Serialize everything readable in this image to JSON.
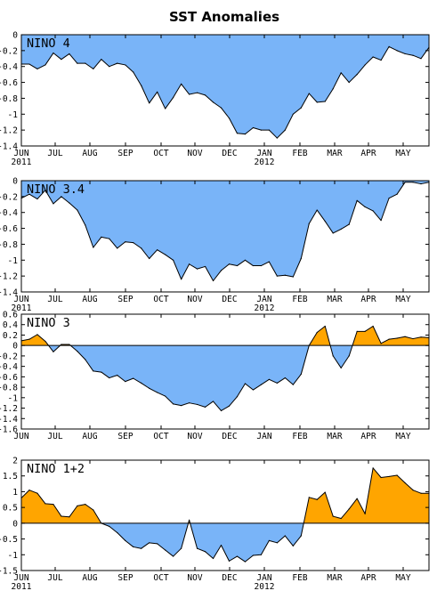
{
  "title": "SST Anomalies",
  "colors": {
    "negative": "#79b4f8",
    "positive": "#ffa500",
    "line": "#000000"
  },
  "chart_data": [
    {
      "type": "area",
      "name": "NINO 4",
      "ylim": [
        -1.4,
        0.0
      ],
      "yticks": [
        "0",
        "-0.2",
        "-0.4",
        "-0.6",
        "-0.8",
        "-1",
        "-1.2",
        "-1.4"
      ],
      "ytick_values": [
        0,
        -0.2,
        -0.4,
        -0.6,
        -0.8,
        -1,
        -1.2,
        -1.4
      ],
      "xticks": [
        "JUN",
        "JUL",
        "AUG",
        "SEP",
        "OCT",
        "NOV",
        "DEC",
        "JAN",
        "FEB",
        "MAR",
        "APR",
        "MAY"
      ],
      "year_labels": [
        "2011",
        "2012"
      ],
      "x_weeks": [
        0,
        1,
        2,
        3,
        4,
        5,
        6,
        7,
        8,
        9,
        10,
        11,
        12,
        13,
        14,
        15,
        16,
        17,
        18,
        19,
        20,
        21,
        22,
        23,
        24,
        25,
        26,
        27,
        28,
        29,
        30,
        31,
        32,
        33,
        34,
        35,
        36,
        37,
        38,
        39,
        40,
        41,
        42,
        43,
        44,
        45,
        46,
        47,
        48,
        49,
        50,
        51
      ],
      "values": [
        -0.37,
        -0.37,
        -0.43,
        -0.38,
        -0.23,
        -0.31,
        -0.24,
        -0.36,
        -0.36,
        -0.43,
        -0.31,
        -0.4,
        -0.36,
        -0.38,
        -0.47,
        -0.64,
        -0.86,
        -0.72,
        -0.93,
        -0.79,
        -0.62,
        -0.75,
        -0.73,
        -0.76,
        -0.85,
        -0.92,
        -1.05,
        -1.24,
        -1.25,
        -1.17,
        -1.2,
        -1.2,
        -1.3,
        -1.2,
        -1.0,
        -0.92,
        -0.74,
        -0.85,
        -0.84,
        -0.68,
        -0.48,
        -0.6,
        -0.5,
        -0.38,
        -0.28,
        -0.32,
        -0.15,
        -0.2,
        -0.24,
        -0.26,
        -0.3,
        -0.16
      ]
    },
    {
      "type": "area",
      "name": "NINO 3.4",
      "ylim": [
        -1.4,
        0.0
      ],
      "yticks": [
        "0",
        "-0.2",
        "-0.4",
        "-0.6",
        "-0.8",
        "-1",
        "-1.2",
        "-1.4"
      ],
      "ytick_values": [
        0,
        -0.2,
        -0.4,
        -0.6,
        -0.8,
        -1,
        -1.2,
        -1.4
      ],
      "xticks": [
        "JUN",
        "JUL",
        "AUG",
        "SEP",
        "OCT",
        "NOV",
        "DEC",
        "JAN",
        "FEB",
        "MAR",
        "APR",
        "MAY"
      ],
      "year_labels": [
        "2011",
        "2012"
      ],
      "x_weeks": [
        0,
        1,
        2,
        3,
        4,
        5,
        6,
        7,
        8,
        9,
        10,
        11,
        12,
        13,
        14,
        15,
        16,
        17,
        18,
        19,
        20,
        21,
        22,
        23,
        24,
        25,
        26,
        27,
        28,
        29,
        30,
        31,
        32,
        33,
        34,
        35,
        36,
        37,
        38,
        39,
        40,
        41,
        42,
        43,
        44,
        45,
        46,
        47,
        48,
        49,
        50,
        51
      ],
      "values": [
        -0.22,
        -0.17,
        -0.23,
        -0.12,
        -0.29,
        -0.2,
        -0.28,
        -0.37,
        -0.56,
        -0.84,
        -0.71,
        -0.73,
        -0.85,
        -0.77,
        -0.78,
        -0.85,
        -0.98,
        -0.87,
        -0.93,
        -1.0,
        -1.24,
        -1.05,
        -1.11,
        -1.08,
        -1.26,
        -1.13,
        -1.05,
        -1.07,
        -1.0,
        -1.07,
        -1.07,
        -1.02,
        -1.2,
        -1.19,
        -1.21,
        -0.98,
        -0.54,
        -0.37,
        -0.51,
        -0.66,
        -0.61,
        -0.55,
        -0.25,
        -0.33,
        -0.38,
        -0.5,
        -0.22,
        -0.17,
        -0.02,
        -0.02,
        -0.04,
        -0.02
      ]
    },
    {
      "type": "area",
      "name": "NINO 3",
      "ylim": [
        -1.6,
        0.6
      ],
      "yticks": [
        "0.6",
        "0.4",
        "0.2",
        "0",
        "-0.2",
        "-0.4",
        "-0.6",
        "-0.8",
        "-1",
        "-1.2",
        "-1.4",
        "-1.6"
      ],
      "ytick_values": [
        0.6,
        0.4,
        0.2,
        0,
        -0.2,
        -0.4,
        -0.6,
        -0.8,
        -1,
        -1.2,
        -1.4,
        -1.6
      ],
      "xticks": [
        "JUN",
        "JUL",
        "AUG",
        "SEP",
        "OCT",
        "NOV",
        "DEC",
        "JAN",
        "FEB",
        "MAR",
        "APR",
        "MAY"
      ],
      "year_labels": [],
      "x_weeks": [
        0,
        1,
        2,
        3,
        4,
        5,
        6,
        7,
        8,
        9,
        10,
        11,
        12,
        13,
        14,
        15,
        16,
        17,
        18,
        19,
        20,
        21,
        22,
        23,
        24,
        25,
        26,
        27,
        28,
        29,
        30,
        31,
        32,
        33,
        34,
        35,
        36,
        37,
        38,
        39,
        40,
        41,
        42,
        43,
        44,
        45,
        46,
        47,
        48,
        49,
        50,
        51
      ],
      "values": [
        0.09,
        0.12,
        0.21,
        0.08,
        -0.12,
        0.02,
        0.02,
        -0.11,
        -0.27,
        -0.49,
        -0.51,
        -0.62,
        -0.57,
        -0.69,
        -0.63,
        -0.72,
        -0.82,
        -0.9,
        -0.97,
        -1.12,
        -1.15,
        -1.1,
        -1.13,
        -1.18,
        -1.07,
        -1.25,
        -1.16,
        -0.98,
        -0.73,
        -0.85,
        -0.75,
        -0.65,
        -0.72,
        -0.62,
        -0.75,
        -0.55,
        0.0,
        0.25,
        0.37,
        -0.2,
        -0.43,
        -0.2,
        0.27,
        0.27,
        0.37,
        0.04,
        0.12,
        0.14,
        0.17,
        0.13,
        0.16,
        0.15
      ]
    },
    {
      "type": "area",
      "name": "NINO 1+2",
      "ylim": [
        -1.5,
        2.0
      ],
      "yticks": [
        "2",
        "1.5",
        "1",
        "0.5",
        "0",
        "-0.5",
        "-1",
        "-1.5"
      ],
      "ytick_values": [
        2,
        1.5,
        1,
        0.5,
        0,
        -0.5,
        -1,
        -1.5
      ],
      "xticks": [
        "JUN",
        "JUL",
        "AUG",
        "SEP",
        "OCT",
        "NOV",
        "DEC",
        "JAN",
        "FEB",
        "MAR",
        "APR",
        "MAY"
      ],
      "year_labels": [
        "2011",
        "2012"
      ],
      "x_weeks": [
        0,
        1,
        2,
        3,
        4,
        5,
        6,
        7,
        8,
        9,
        10,
        11,
        12,
        13,
        14,
        15,
        16,
        17,
        18,
        19,
        20,
        21,
        22,
        23,
        24,
        25,
        26,
        27,
        28,
        29,
        30,
        31,
        32,
        33,
        34,
        35,
        36,
        37,
        38,
        39,
        40,
        41,
        42,
        43,
        44,
        45,
        46,
        47,
        48,
        49,
        50,
        51
      ],
      "values": [
        0.8,
        1.05,
        0.95,
        0.62,
        0.6,
        0.22,
        0.2,
        0.55,
        0.6,
        0.42,
        0.0,
        -0.1,
        -0.3,
        -0.55,
        -0.75,
        -0.8,
        -0.62,
        -0.65,
        -0.85,
        -1.05,
        -0.8,
        0.1,
        -0.8,
        -0.9,
        -1.12,
        -0.7,
        -1.2,
        -1.05,
        -1.22,
        -1.02,
        -1.0,
        -0.55,
        -0.62,
        -0.4,
        -0.72,
        -0.4,
        0.82,
        0.75,
        0.98,
        0.22,
        0.15,
        0.45,
        0.78,
        0.3,
        1.75,
        1.45,
        1.48,
        1.52,
        1.28,
        1.05,
        0.95,
        0.95
      ]
    }
  ]
}
